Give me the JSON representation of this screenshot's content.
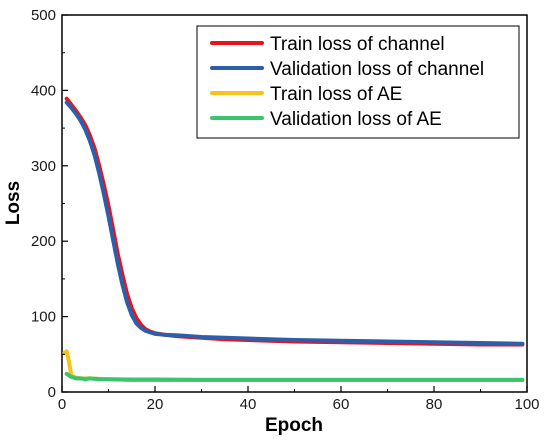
{
  "chart_data": {
    "type": "line",
    "title": "",
    "xlabel": "Epoch",
    "ylabel": "Loss",
    "xlim": [
      0,
      100
    ],
    "ylim": [
      0,
      500
    ],
    "x_ticks": [
      0,
      20,
      40,
      60,
      80,
      100
    ],
    "y_ticks": [
      0,
      100,
      200,
      300,
      400,
      500
    ],
    "x_tick_labels": [
      "0",
      "20",
      "40",
      "60",
      "80",
      "100"
    ],
    "y_tick_labels": [
      "0",
      "100",
      "200",
      "300",
      "400",
      "500"
    ],
    "grid": false,
    "legend_position": "top-right",
    "series": [
      {
        "name": "Train loss of channel",
        "color": "#e8131b",
        "x": [
          1,
          2,
          3,
          4,
          5,
          6,
          7,
          8,
          9,
          10,
          11,
          12,
          13,
          14,
          15,
          16,
          17,
          18,
          19,
          20,
          22,
          25,
          30,
          35,
          40,
          50,
          60,
          70,
          80,
          90,
          99
        ],
        "y": [
          389,
          381,
          373,
          364,
          354,
          340,
          323,
          300,
          275,
          247,
          215,
          183,
          155,
          130,
          111,
          98,
          89,
          83,
          80,
          78,
          76,
          74,
          72,
          70,
          69,
          67,
          66,
          65,
          64,
          63,
          63
        ]
      },
      {
        "name": "Validation loss of channel",
        "color": "#2e5eaa",
        "x": [
          1,
          2,
          3,
          4,
          5,
          6,
          7,
          8,
          9,
          10,
          11,
          12,
          13,
          14,
          15,
          16,
          17,
          18,
          19,
          20,
          22,
          25,
          30,
          35,
          40,
          50,
          60,
          70,
          80,
          90,
          99
        ],
        "y": [
          384,
          377,
          369,
          360,
          348,
          333,
          314,
          290,
          263,
          233,
          201,
          170,
          142,
          119,
          102,
          91,
          85,
          81,
          79,
          77,
          76,
          75,
          73,
          72,
          71,
          69,
          68,
          67,
          66,
          65,
          64
        ]
      },
      {
        "name": "Train loss of AE",
        "color": "#f7c21a",
        "x": [
          0.5,
          1,
          1.5,
          2,
          3,
          4,
          6,
          10,
          20,
          30,
          40,
          50,
          60,
          70,
          80,
          90,
          99
        ],
        "y": [
          52,
          54,
          40,
          22,
          19,
          18,
          18,
          17,
          17,
          16,
          16,
          16,
          16,
          16,
          16,
          16,
          16
        ]
      },
      {
        "name": "Validation loss of AE",
        "color": "#3cc46c",
        "x": [
          1,
          2,
          3,
          4,
          5,
          6,
          8,
          10,
          15,
          20,
          30,
          40,
          50,
          60,
          70,
          80,
          90,
          99
        ],
        "y": [
          24,
          20,
          18,
          18,
          17,
          18,
          17,
          17,
          16,
          16,
          16,
          16,
          16,
          16,
          16,
          16,
          16,
          16
        ]
      }
    ]
  }
}
